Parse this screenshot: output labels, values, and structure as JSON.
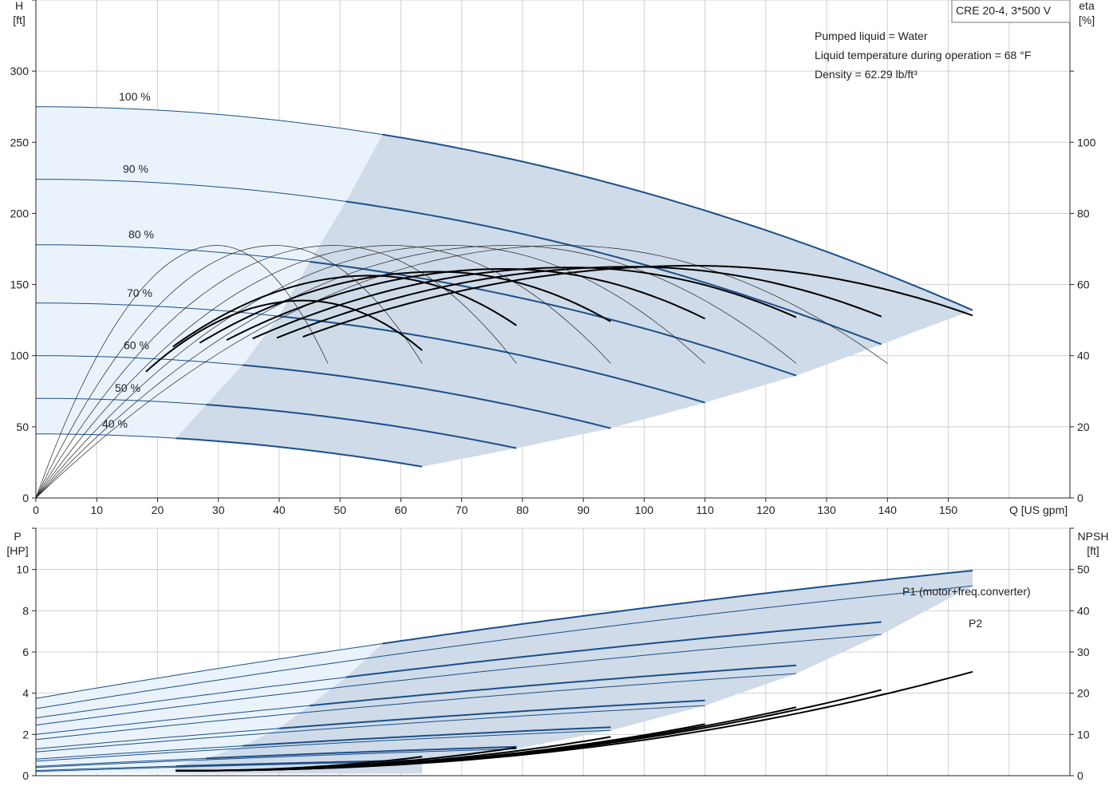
{
  "info": {
    "model": "CRE 20-4, 3*500 V",
    "lines": [
      "Pumped liquid = Water",
      "Liquid temperature during operation = 68 °F",
      "Density = 62.29 lb/ft³"
    ]
  },
  "colors": {
    "curve": "#1a4f8a",
    "eff": "#000000",
    "band_light": "#eaf3fc",
    "band_dark": "#cfdbe8",
    "grid": "#d0d0d0"
  },
  "chart_data": [
    {
      "type": "line",
      "name": "head",
      "xlabel": "Q [US gpm]",
      "ylabel_left": [
        "H",
        "[ft]"
      ],
      "ylabel_right": [
        "eta",
        "[%]"
      ],
      "xlim": [
        0,
        170
      ],
      "ylim": [
        0,
        350
      ],
      "eta_lim": [
        0,
        140
      ],
      "x_ticks": [
        0,
        10,
        20,
        30,
        40,
        50,
        60,
        70,
        80,
        90,
        100,
        110,
        120,
        130,
        140,
        150
      ],
      "y_ticks": [
        0,
        50,
        100,
        150,
        200,
        250,
        300
      ],
      "eta_ticks": [
        0,
        20,
        40,
        60,
        80,
        100
      ],
      "speed_curves": [
        {
          "label": "100 %",
          "H0": 275,
          "Qmax": 154,
          "Hend": 132,
          "Qop": 57
        },
        {
          "label": "90 %",
          "H0": 224,
          "Qmax": 139,
          "Hend": 108,
          "Qop": 51
        },
        {
          "label": "80 %",
          "H0": 178,
          "Qmax": 125,
          "Hend": 86,
          "Qop": 45
        },
        {
          "label": "70 %",
          "H0": 137,
          "Qmax": 110,
          "Hend": 67,
          "Qop": 40
        },
        {
          "label": "60 %",
          "H0": 100,
          "Qmax": 94.5,
          "Hend": 49,
          "Qop": 34
        },
        {
          "label": "50 %",
          "H0": 70,
          "Qmax": 79,
          "Hend": 35,
          "Qop": 28
        },
        {
          "label": "40 %",
          "H0": 45,
          "Qmax": 63.5,
          "Hend": 22,
          "Qop": 23
        }
      ],
      "efficiency_curves": [
        {
          "Qmax": 154,
          "Qpeak": 108,
          "peak": 65.3,
          "thin_peak": 71,
          "thin_end": 140
        },
        {
          "Qmax": 139,
          "Qpeak": 98,
          "peak": 65,
          "thin_peak": 71,
          "thin_end": 125
        },
        {
          "Qmax": 125,
          "Qpeak": 88,
          "peak": 64.8,
          "thin_peak": 71,
          "thin_end": 110
        },
        {
          "Qmax": 110,
          "Qpeak": 77,
          "peak": 64.4,
          "thin_peak": 71,
          "thin_end": 94.5
        },
        {
          "Qmax": 94.5,
          "Qpeak": 66,
          "peak": 63.6,
          "thin_peak": 71,
          "thin_end": 79
        },
        {
          "Qmax": 79,
          "Qpeak": 55,
          "peak": 62.5,
          "thin_peak": 71,
          "thin_end": 63.5
        },
        {
          "Qmax": 63.5,
          "Qpeak": 44,
          "peak": 55.5,
          "thin_peak": 71,
          "thin_end": 48
        }
      ]
    },
    {
      "type": "line",
      "name": "power",
      "xlim": [
        0,
        170
      ],
      "ylabel_left": [
        "P",
        "[HP]"
      ],
      "ylabel_right": [
        "NPSH",
        "[ft]"
      ],
      "ylim": [
        0,
        12
      ],
      "npsh_lim": [
        0,
        60
      ],
      "y_ticks": [
        0,
        2,
        4,
        6,
        8,
        10
      ],
      "npsh_ticks": [
        0,
        10,
        20,
        30,
        40,
        50
      ],
      "series_labels": {
        "p1": "P1 (motor+freq.converter)",
        "p2": "P2"
      },
      "p1_curves": [
        {
          "P0": 3.75,
          "Pend": 9.95,
          "Qmax": 154,
          "Qop": 57
        },
        {
          "P0": 2.8,
          "Pend": 7.45,
          "Qmax": 139,
          "Qop": 51
        },
        {
          "P0": 2.0,
          "Pend": 5.35,
          "Qmax": 125,
          "Qop": 45
        },
        {
          "P0": 1.3,
          "Pend": 3.65,
          "Qmax": 110,
          "Qop": 40
        },
        {
          "P0": 0.8,
          "Pend": 2.35,
          "Qmax": 94.5,
          "Qop": 34
        },
        {
          "P0": 0.45,
          "Pend": 1.4,
          "Qmax": 79,
          "Qop": 28
        },
        {
          "P0": 0.25,
          "Pend": 0.75,
          "Qmax": 63.5,
          "Qop": 23
        }
      ],
      "p2_curves": [
        {
          "P0": 3.25,
          "Pend": 9.2,
          "Qmax": 154
        },
        {
          "P0": 2.45,
          "Pend": 6.85,
          "Qmax": 139
        },
        {
          "P0": 1.75,
          "Pend": 4.95,
          "Qmax": 125
        },
        {
          "P0": 1.15,
          "Pend": 3.4,
          "Qmax": 110
        },
        {
          "P0": 0.7,
          "Pend": 2.2,
          "Qmax": 94.5
        },
        {
          "P0": 0.4,
          "Pend": 1.3,
          "Qmax": 79
        },
        {
          "P0": 0.2,
          "Pend": 0.7,
          "Qmax": 63.5
        }
      ],
      "npsh_curves": [
        {
          "Qmax": 154,
          "Nend": 25.2
        },
        {
          "Qmax": 139,
          "Nend": 20.8
        },
        {
          "Qmax": 125,
          "Nend": 16.6
        },
        {
          "Qmax": 110,
          "Nend": 12.5
        },
        {
          "Qmax": 94.5,
          "Nend": 9.4
        },
        {
          "Qmax": 79,
          "Nend": 6.8
        },
        {
          "Qmax": 63.5,
          "Nend": 4.6
        }
      ]
    }
  ]
}
